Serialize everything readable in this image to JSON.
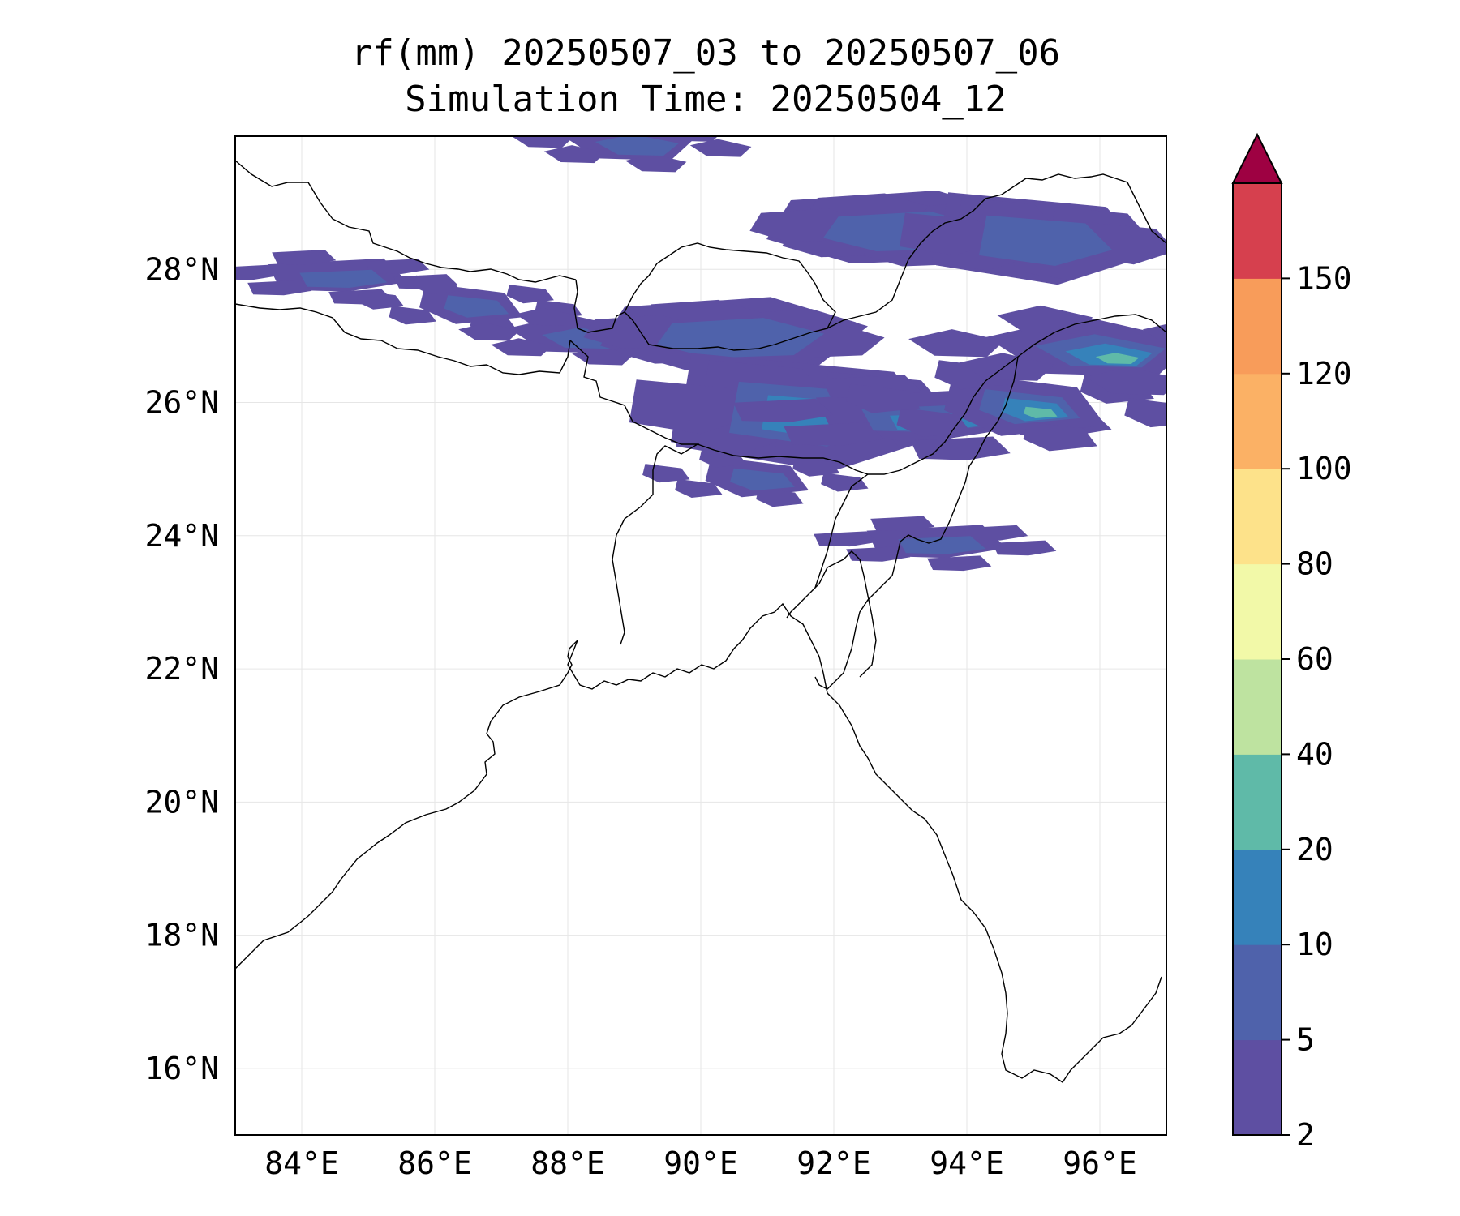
{
  "title": {
    "line1": "rf(mm) 20250507_03 to 20250507_06",
    "line2": "Simulation Time: 20250504_12"
  },
  "map": {
    "lon_range": [
      83.0,
      97.0
    ],
    "lat_range": [
      15.0,
      30.0
    ],
    "gridlines": true,
    "lon_ticks": [
      {
        "value": 84,
        "label": "84°E"
      },
      {
        "value": 86,
        "label": "86°E"
      },
      {
        "value": 88,
        "label": "88°E"
      },
      {
        "value": 90,
        "label": "90°E"
      },
      {
        "value": 92,
        "label": "92°E"
      },
      {
        "value": 94,
        "label": "94°E"
      },
      {
        "value": 96,
        "label": "96°E"
      }
    ],
    "lat_ticks": [
      {
        "value": 16,
        "label": "16°N"
      },
      {
        "value": 18,
        "label": "18°N"
      },
      {
        "value": 20,
        "label": "20°N"
      },
      {
        "value": 22,
        "label": "22°N"
      },
      {
        "value": 24,
        "label": "24°N"
      },
      {
        "value": 26,
        "label": "26°N"
      },
      {
        "value": 28,
        "label": "28°N"
      }
    ],
    "rain_regions": [
      {
        "lon": 84.5,
        "lat": 27.9,
        "level": 1
      },
      {
        "lon": 86.5,
        "lat": 27.5,
        "level": 1
      },
      {
        "lon": 88.2,
        "lat": 27.0,
        "level": 1
      },
      {
        "lon": 90.5,
        "lat": 27.0,
        "level": 1
      },
      {
        "lon": 91.5,
        "lat": 25.9,
        "level": 2
      },
      {
        "lon": 93.3,
        "lat": 25.8,
        "level": 3
      },
      {
        "lon": 94.8,
        "lat": 26.0,
        "level": 3
      },
      {
        "lon": 96.0,
        "lat": 26.8,
        "level": 3
      },
      {
        "lon": 93.0,
        "lat": 28.6,
        "level": 1
      },
      {
        "lon": 95.0,
        "lat": 28.5,
        "level": 1
      },
      {
        "lon": 93.5,
        "lat": 23.9,
        "level": 1
      },
      {
        "lon": 90.8,
        "lat": 24.9,
        "level": 1
      },
      {
        "lon": 89.0,
        "lat": 29.9,
        "level": 1
      }
    ]
  },
  "colorbar": {
    "levels": [
      2,
      5,
      10,
      20,
      40,
      60,
      80,
      100,
      120,
      150
    ],
    "labels": [
      "2",
      "5",
      "10",
      "20",
      "40",
      "60",
      "80",
      "100",
      "120",
      "150"
    ],
    "colors": [
      "#5e4fa2",
      "#4f62ab",
      "#3682ba",
      "#5fbaa8",
      "#bee3a0",
      "#f2f9a8",
      "#fde28a",
      "#fbb165",
      "#f89c5a",
      "#d6404e"
    ],
    "extend_color": "#9e0142"
  }
}
